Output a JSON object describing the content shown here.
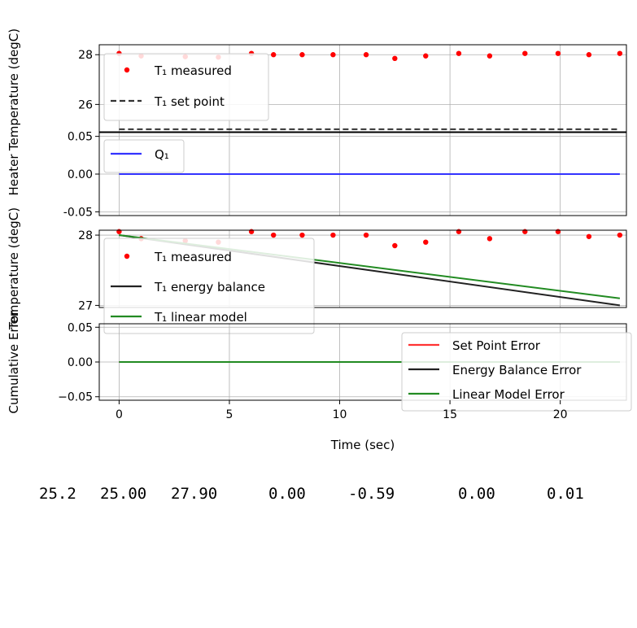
{
  "chart_data": [
    {
      "type": "scatter",
      "ylabel": "Temperature (degC)",
      "ylim": [
        24.9,
        28.4
      ],
      "xlim": [
        -0.9,
        23.0
      ],
      "yticks": [
        26,
        28
      ],
      "grid": true,
      "legend_position": "upper-left",
      "series": [
        {
          "name": "T₁ measured",
          "style": "points",
          "color": "#ff0000",
          "x": [
            0,
            1.0,
            3.0,
            4.5,
            6.0,
            7.0,
            8.3,
            9.7,
            11.2,
            12.5,
            13.9,
            15.4,
            16.8,
            18.4,
            19.9,
            21.3,
            22.7
          ],
          "y": [
            28.05,
            27.95,
            27.92,
            27.9,
            28.05,
            28.0,
            28.0,
            28.0,
            28.0,
            27.85,
            27.95,
            28.05,
            27.95,
            28.05,
            28.05,
            28.0,
            28.05
          ]
        },
        {
          "name": "T₁ set point",
          "style": "dashed",
          "color": "#333333",
          "x": [
            0,
            22.7
          ],
          "y": [
            25.0,
            25.0
          ]
        }
      ]
    },
    {
      "type": "line",
      "ylabel": "Heater",
      "ylim": [
        -0.055,
        0.055
      ],
      "xlim": [
        -0.9,
        23.0
      ],
      "yticks": [
        0.05,
        0.0,
        -0.05
      ],
      "ytick_labels": [
        "0.05",
        "0.00",
        "-0.05"
      ],
      "grid": true,
      "legend_position": "upper-left",
      "series": [
        {
          "name": "Q₁",
          "style": "solid",
          "color": "#3333ff",
          "x": [
            0,
            22.7
          ],
          "y": [
            0.0,
            0.0
          ]
        }
      ]
    },
    {
      "type": "line",
      "ylabel": "Temperature (degC)",
      "ylim": [
        26.97,
        28.07
      ],
      "xlim": [
        -0.9,
        23.0
      ],
      "yticks": [
        27,
        28
      ],
      "grid": true,
      "legend_position": "upper-left",
      "series": [
        {
          "name": "T₁ measured",
          "style": "points",
          "color": "#ff0000",
          "x": [
            0,
            1.0,
            3.0,
            4.5,
            6.0,
            7.0,
            8.3,
            9.7,
            11.2,
            12.5,
            13.9,
            15.4,
            16.8,
            18.4,
            19.9,
            21.3,
            22.7
          ],
          "y": [
            28.05,
            27.95,
            27.92,
            27.9,
            28.05,
            28.0,
            28.0,
            28.0,
            28.0,
            27.85,
            27.9,
            28.05,
            27.95,
            28.05,
            28.05,
            27.98,
            28.0
          ]
        },
        {
          "name": "T₁ energy balance",
          "style": "solid",
          "color": "#222222",
          "x": [
            0,
            22.7
          ],
          "y": [
            28.0,
            27.0
          ]
        },
        {
          "name": "T₁ linear model",
          "style": "solid",
          "color": "#228b22",
          "x": [
            0,
            22.7
          ],
          "y": [
            28.0,
            27.1
          ]
        }
      ]
    },
    {
      "type": "line",
      "ylabel": "Cumulative Error",
      "xlabel": "Time (sec)",
      "ylim": [
        -0.055,
        0.055
      ],
      "xlim": [
        -0.9,
        23.0
      ],
      "xticks": [
        0,
        5,
        10,
        15,
        20
      ],
      "yticks": [
        0.05,
        0.0,
        -0.05
      ],
      "ytick_labels": [
        "0.05",
        "0.00",
        "−0.05"
      ],
      "grid": true,
      "legend_position": "upper-right",
      "series": [
        {
          "name": "Set Point Error",
          "style": "solid",
          "color": "#ff3333",
          "x": [
            0,
            22.7
          ],
          "y": [
            0.0,
            0.0
          ]
        },
        {
          "name": "Energy Balance Error",
          "style": "solid",
          "color": "#222222",
          "x": [
            0,
            22.7
          ],
          "y": [
            0.0,
            0.0
          ]
        },
        {
          "name": "Linear Model Error",
          "style": "solid",
          "color": "#228b22",
          "x": [
            0,
            22.7
          ],
          "y": [
            0.0,
            0.0
          ]
        }
      ]
    }
  ],
  "status_line": {
    "values": [
      "25.2",
      "25.00",
      "27.90",
      "0.00",
      "-0.59",
      "0.00",
      "0.01"
    ]
  }
}
